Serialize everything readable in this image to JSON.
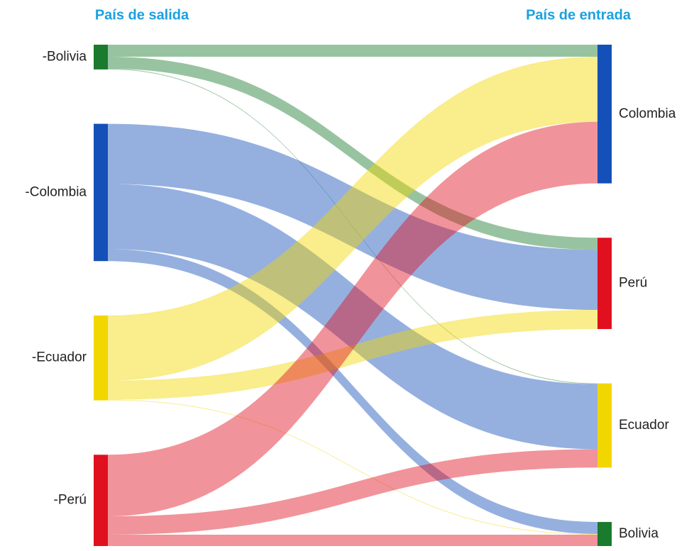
{
  "chart_data": {
    "type": "sankey",
    "source_title": "País de salida",
    "target_title": "País de entrada",
    "sources": [
      {
        "label": "-Bolivia",
        "color": "#1a7a2e"
      },
      {
        "label": "-Colombia",
        "color": "#1450b8"
      },
      {
        "label": "-Ecuador",
        "color": "#f2d600"
      },
      {
        "label": "-Perú",
        "color": "#e0101e"
      }
    ],
    "targets": [
      {
        "label": "Colombia",
        "color": "#1450b8"
      },
      {
        "label": "Perú",
        "color": "#e0101e"
      },
      {
        "label": "Ecuador",
        "color": "#f2d600"
      },
      {
        "label": "Bolivia",
        "color": "#1a7a2e"
      }
    ],
    "links": [
      {
        "source": 0,
        "target": 0,
        "value": 17
      },
      {
        "source": 0,
        "target": 1,
        "value": 17
      },
      {
        "source": 0,
        "target": 2,
        "value": 1
      },
      {
        "source": 1,
        "target": 1,
        "value": 85
      },
      {
        "source": 1,
        "target": 2,
        "value": 92
      },
      {
        "source": 1,
        "target": 3,
        "value": 17
      },
      {
        "source": 2,
        "target": 0,
        "value": 92
      },
      {
        "source": 2,
        "target": 1,
        "value": 27
      },
      {
        "source": 2,
        "target": 3,
        "value": 1
      },
      {
        "source": 3,
        "target": 0,
        "value": 87
      },
      {
        "source": 3,
        "target": 2,
        "value": 26
      },
      {
        "source": 3,
        "target": 3,
        "value": 16
      }
    ]
  }
}
